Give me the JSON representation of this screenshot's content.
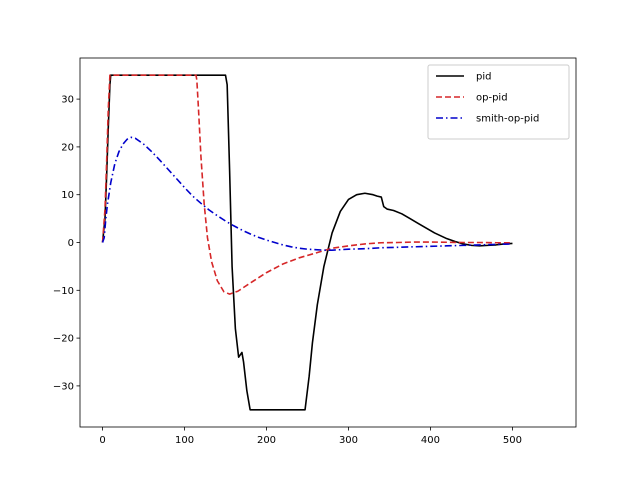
{
  "chart_data": {
    "type": "line",
    "title": "",
    "xlabel": "",
    "ylabel": "",
    "xlim": [
      -27.5,
      577.5
    ],
    "ylim": [
      -38.6,
      38.6
    ],
    "xticks": [
      0,
      100,
      200,
      300,
      400,
      500
    ],
    "yticks": [
      -30,
      -20,
      -10,
      0,
      10,
      20,
      30
    ],
    "xtick_labels": [
      "0",
      "100",
      "200",
      "300",
      "400",
      "500"
    ],
    "ytick_labels": [
      "−30",
      "−20",
      "−10",
      "0",
      "10",
      "20",
      "30"
    ],
    "grid": false,
    "legend_position": "top-right",
    "series": [
      {
        "name": "pid",
        "color": "#000000",
        "dash": "solid",
        "points": [
          [
            0,
            0
          ],
          [
            3,
            5
          ],
          [
            5,
            14
          ],
          [
            7,
            24
          ],
          [
            9,
            33
          ],
          [
            10,
            35
          ],
          [
            50,
            35
          ],
          [
            100,
            35
          ],
          [
            150,
            35
          ],
          [
            152,
            33
          ],
          [
            155,
            15
          ],
          [
            158,
            -5
          ],
          [
            162,
            -18
          ],
          [
            166,
            -24
          ],
          [
            168,
            -23.5
          ],
          [
            170,
            -23
          ],
          [
            172,
            -25
          ],
          [
            176,
            -31
          ],
          [
            180,
            -35
          ],
          [
            200,
            -35
          ],
          [
            247,
            -35
          ],
          [
            252,
            -28
          ],
          [
            256,
            -21
          ],
          [
            262,
            -13
          ],
          [
            270,
            -5
          ],
          [
            280,
            2
          ],
          [
            290,
            6.5
          ],
          [
            300,
            9
          ],
          [
            310,
            10
          ],
          [
            320,
            10.3
          ],
          [
            330,
            10
          ],
          [
            335,
            9.7
          ],
          [
            340,
            9.5
          ],
          [
            343,
            7.5
          ],
          [
            347,
            7
          ],
          [
            355,
            6.7
          ],
          [
            365,
            6
          ],
          [
            375,
            5
          ],
          [
            385,
            4
          ],
          [
            395,
            3
          ],
          [
            405,
            2
          ],
          [
            420,
            0.8
          ],
          [
            430,
            0.2
          ],
          [
            440,
            -0.3
          ],
          [
            450,
            -0.6
          ],
          [
            460,
            -0.7
          ],
          [
            470,
            -0.6
          ],
          [
            480,
            -0.5
          ],
          [
            490,
            -0.3
          ],
          [
            500,
            -0.2
          ]
        ]
      },
      {
        "name": "op-pid",
        "color": "#d62728",
        "dash": "dashed",
        "points": [
          [
            0,
            0
          ],
          [
            3,
            7
          ],
          [
            5,
            17
          ],
          [
            7,
            28
          ],
          [
            9,
            35
          ],
          [
            50,
            35
          ],
          [
            100,
            35
          ],
          [
            114,
            35
          ],
          [
            115,
            34
          ],
          [
            117,
            28
          ],
          [
            120,
            18
          ],
          [
            124,
            8
          ],
          [
            128,
            1
          ],
          [
            133,
            -4
          ],
          [
            140,
            -8
          ],
          [
            148,
            -10.3
          ],
          [
            155,
            -10.8
          ],
          [
            165,
            -10.2
          ],
          [
            180,
            -8.5
          ],
          [
            200,
            -6.3
          ],
          [
            220,
            -4.5
          ],
          [
            240,
            -3.2
          ],
          [
            260,
            -2.2
          ],
          [
            280,
            -1.2
          ],
          [
            300,
            -0.7
          ],
          [
            320,
            -0.3
          ],
          [
            340,
            -0.05
          ],
          [
            360,
            0
          ],
          [
            380,
            0.1
          ],
          [
            400,
            0.1
          ],
          [
            420,
            0.05
          ],
          [
            440,
            0
          ],
          [
            460,
            0
          ],
          [
            480,
            -0.05
          ],
          [
            500,
            -0.05
          ]
        ]
      },
      {
        "name": "smith-op-pid",
        "color": "#0000cc",
        "dash": "dashdot",
        "points": [
          [
            0,
            0
          ],
          [
            2,
            1
          ],
          [
            4,
            5
          ],
          [
            6,
            8
          ],
          [
            10,
            12.5
          ],
          [
            15,
            16.5
          ],
          [
            20,
            19
          ],
          [
            25,
            20.6
          ],
          [
            30,
            21.6
          ],
          [
            35,
            22
          ],
          [
            40,
            21.8
          ],
          [
            50,
            20.6
          ],
          [
            60,
            19
          ],
          [
            70,
            17.2
          ],
          [
            80,
            15.3
          ],
          [
            90,
            13.4
          ],
          [
            100,
            11.5
          ],
          [
            110,
            9.7
          ],
          [
            120,
            8.2
          ],
          [
            130,
            6.8
          ],
          [
            140,
            5.6
          ],
          [
            150,
            4.5
          ],
          [
            160,
            3.5
          ],
          [
            170,
            2.6
          ],
          [
            180,
            1.8
          ],
          [
            190,
            1.1
          ],
          [
            200,
            0.5
          ],
          [
            210,
            0
          ],
          [
            220,
            -0.5
          ],
          [
            230,
            -0.9
          ],
          [
            240,
            -1.2
          ],
          [
            250,
            -1.4
          ],
          [
            260,
            -1.5
          ],
          [
            270,
            -1.6
          ],
          [
            280,
            -1.6
          ],
          [
            290,
            -1.5
          ],
          [
            300,
            -1.4
          ],
          [
            320,
            -1.3
          ],
          [
            340,
            -1.1
          ],
          [
            360,
            -1
          ],
          [
            380,
            -0.9
          ],
          [
            400,
            -0.8
          ],
          [
            420,
            -0.7
          ],
          [
            440,
            -0.6
          ],
          [
            460,
            -0.5
          ],
          [
            480,
            -0.4
          ],
          [
            500,
            -0.3
          ]
        ]
      }
    ]
  }
}
